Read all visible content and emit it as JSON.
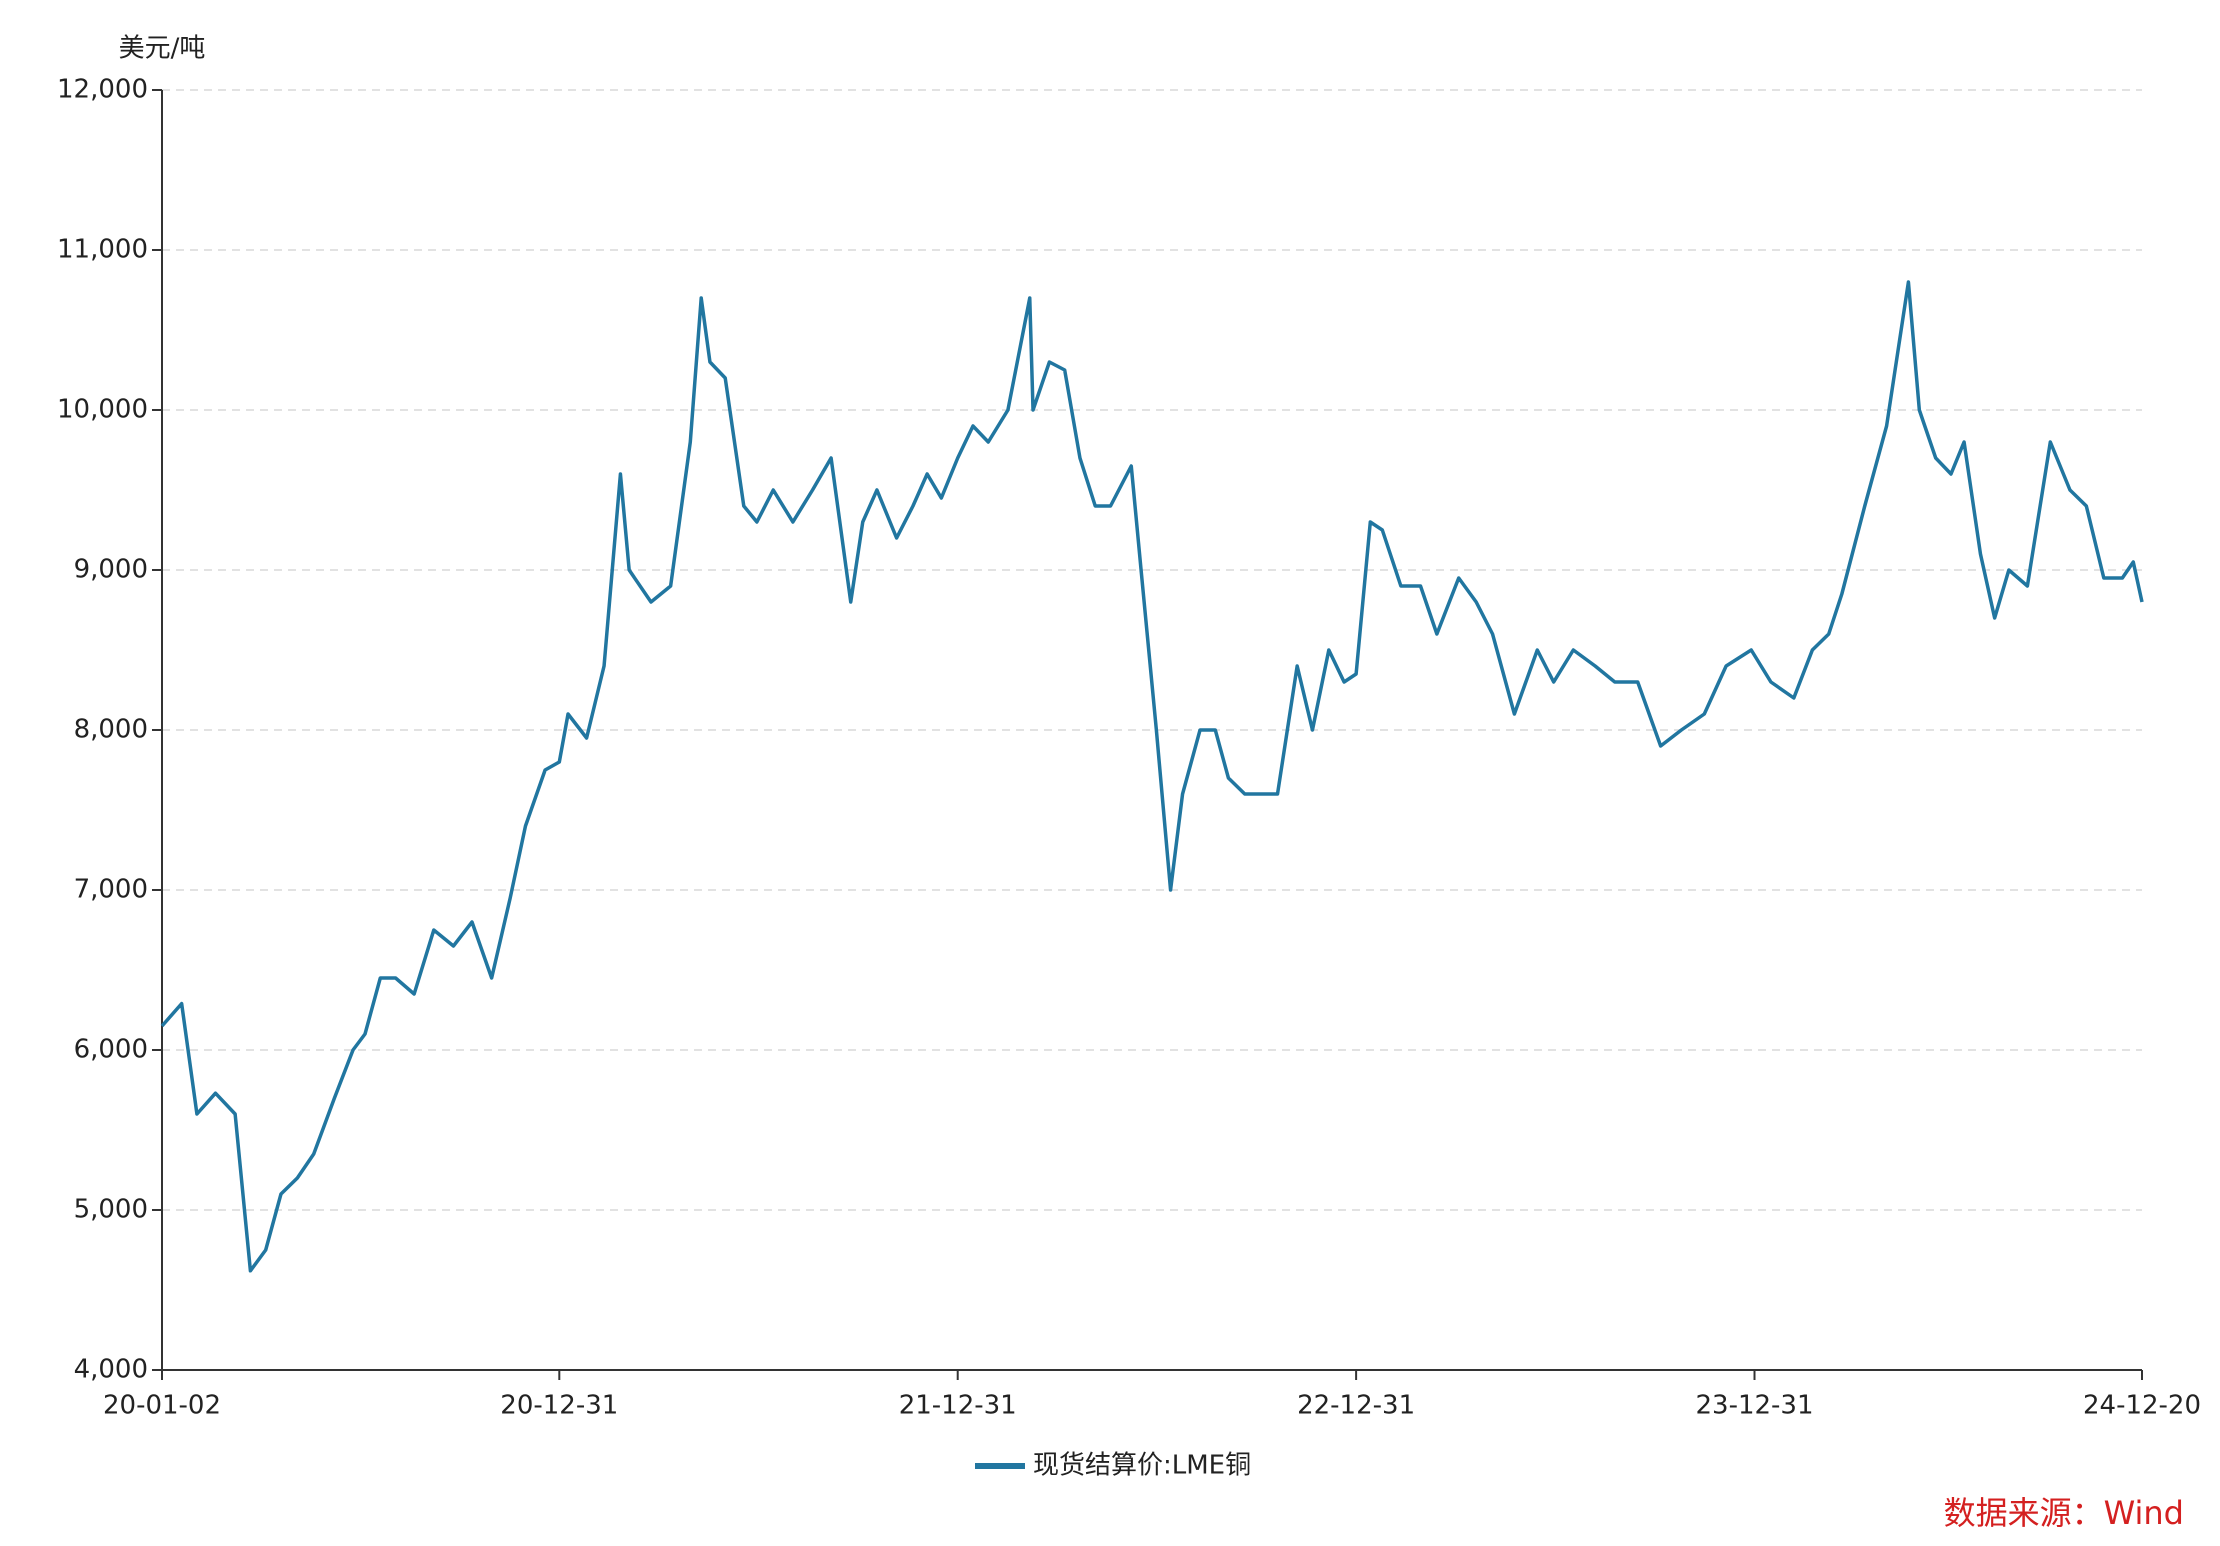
{
  "chart_data": {
    "type": "line",
    "y_unit": "美元/吨",
    "source": "数据来源：Wind",
    "x": [
      "20-01-02",
      "20-01-20",
      "20-02-03",
      "20-02-20",
      "20-03-09",
      "20-03-23",
      "20-04-06",
      "20-04-20",
      "20-05-05",
      "20-05-20",
      "20-06-08",
      "20-06-25",
      "20-07-06",
      "20-07-20",
      "20-08-03",
      "20-08-20",
      "20-09-07",
      "20-09-25",
      "20-10-12",
      "20-10-30",
      "20-11-16",
      "20-11-30",
      "20-12-18",
      "20-12-31",
      "21-01-08",
      "21-01-25",
      "21-02-10",
      "21-02-25",
      "21-03-05",
      "21-03-25",
      "21-04-12",
      "21-04-30",
      "21-05-10",
      "21-05-18",
      "21-06-01",
      "21-06-18",
      "21-06-30",
      "21-07-15",
      "21-08-02",
      "21-08-20",
      "21-09-06",
      "21-09-24",
      "21-10-05",
      "21-10-18",
      "21-11-05",
      "21-11-20",
      "21-12-03",
      "21-12-16",
      "21-12-31",
      "22-01-14",
      "22-01-28",
      "22-02-15",
      "22-03-07",
      "22-03-10",
      "22-03-25",
      "22-04-08",
      "22-04-22",
      "22-05-06",
      "22-05-20",
      "22-06-08",
      "22-06-17",
      "22-07-01",
      "22-07-14",
      "22-07-25",
      "22-08-10",
      "22-08-24",
      "22-09-05",
      "22-09-20",
      "22-10-05",
      "22-10-20",
      "22-11-07",
      "22-11-21",
      "22-12-06",
      "22-12-20",
      "22-12-31",
      "23-01-13",
      "23-01-24",
      "23-02-10",
      "23-02-28",
      "23-03-15",
      "23-04-04",
      "23-04-20",
      "23-05-05",
      "23-05-25",
      "23-06-15",
      "23-06-30",
      "23-07-18",
      "23-08-07",
      "23-08-25",
      "23-09-15",
      "23-10-06",
      "23-10-25",
      "23-11-15",
      "23-12-05",
      "23-12-28",
      "24-01-15",
      "24-02-05",
      "24-02-22",
      "24-03-08",
      "24-03-20",
      "24-04-10",
      "24-04-30",
      "24-05-20",
      "24-05-30",
      "24-06-14",
      "24-06-28",
      "24-07-10",
      "24-07-25",
      "24-08-07",
      "24-08-20",
      "24-09-06",
      "24-09-27",
      "24-10-15",
      "24-10-30",
      "24-11-15",
      "24-12-02",
      "24-12-12",
      "24-12-20"
    ],
    "series": [
      {
        "name": "现货结算价:LME铜",
        "color": "#2176a0",
        "values": [
          6150,
          6290,
          5600,
          5730,
          5600,
          4620,
          4750,
          5100,
          5200,
          5350,
          5700,
          6000,
          6100,
          6450,
          6450,
          6350,
          6750,
          6650,
          6800,
          6450,
          6950,
          7400,
          7750,
          7800,
          8100,
          7950,
          8400,
          9600,
          9000,
          8800,
          8900,
          9800,
          10700,
          10300,
          10200,
          9400,
          9300,
          9500,
          9300,
          9500,
          9700,
          8800,
          9300,
          9500,
          9200,
          9400,
          9600,
          9450,
          9700,
          9900,
          9800,
          10000,
          10700,
          10000,
          10300,
          10250,
          9700,
          9400,
          9400,
          9650,
          9000,
          8000,
          7000,
          7600,
          8000,
          8000,
          7700,
          7600,
          7600,
          7600,
          8400,
          8000,
          8500,
          8300,
          8350,
          9300,
          9250,
          8900,
          8900,
          8600,
          8950,
          8800,
          8600,
          8100,
          8500,
          8300,
          8500,
          8400,
          8300,
          8300,
          7900,
          8000,
          8100,
          8400,
          8500,
          8300,
          8200,
          8500,
          8600,
          8850,
          9400,
          9900,
          10800,
          10000,
          9700,
          9600,
          9800,
          9100,
          8700,
          9000,
          8900,
          9800,
          9500,
          9400,
          8950,
          8950,
          9050,
          8800
        ]
      }
    ],
    "ylim": [
      4000,
      12000
    ],
    "yticks": [
      {
        "value": 4000,
        "label": "4,000"
      },
      {
        "value": 5000,
        "label": "5,000"
      },
      {
        "value": 6000,
        "label": "6,000"
      },
      {
        "value": 7000,
        "label": "7,000"
      },
      {
        "value": 8000,
        "label": "8,000"
      },
      {
        "value": 9000,
        "label": "9,000"
      },
      {
        "value": 10000,
        "label": "10,000"
      },
      {
        "value": 11000,
        "label": "11,000"
      },
      {
        "value": 12000,
        "label": "12,000"
      }
    ],
    "xlim": [
      "20-01-02",
      "24-12-20"
    ],
    "xticks": [
      "20-01-02",
      "20-12-31",
      "21-12-31",
      "22-12-31",
      "23-12-31",
      "24-12-20"
    ],
    "grid": true
  }
}
